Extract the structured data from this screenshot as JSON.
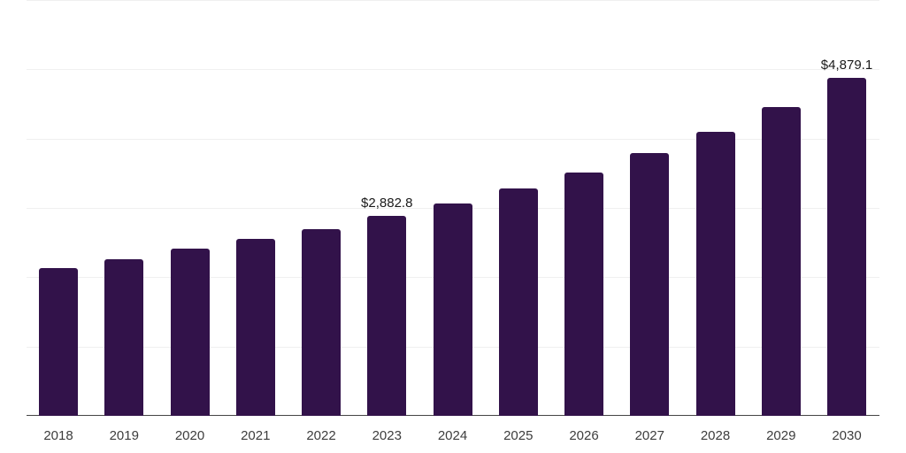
{
  "chart_data": {
    "type": "bar",
    "title": "",
    "xlabel": "",
    "ylabel": "",
    "categories": [
      "2018",
      "2019",
      "2020",
      "2021",
      "2022",
      "2023",
      "2024",
      "2025",
      "2026",
      "2027",
      "2028",
      "2029",
      "2030"
    ],
    "values": [
      2135,
      2260,
      2410,
      2555,
      2695,
      2882.8,
      3065,
      3280,
      3510,
      3790,
      4100,
      4455,
      4879.1
    ],
    "data_labels": [
      {
        "category": "2023",
        "text": "$2,882.8"
      },
      {
        "category": "2030",
        "text": "$4,879.1"
      }
    ],
    "ylim": [
      0,
      6000
    ],
    "gridline_step": 1000,
    "grid": "horizontal-only",
    "legend": "none",
    "y_axis_tick_labels": "none",
    "bar_color": "#32124a",
    "gridline_color": "#f0f0f0",
    "axis_line_color": "#454545",
    "value_label_color": "#1a1a1a",
    "tick_label_color": "#3d3d3d"
  }
}
